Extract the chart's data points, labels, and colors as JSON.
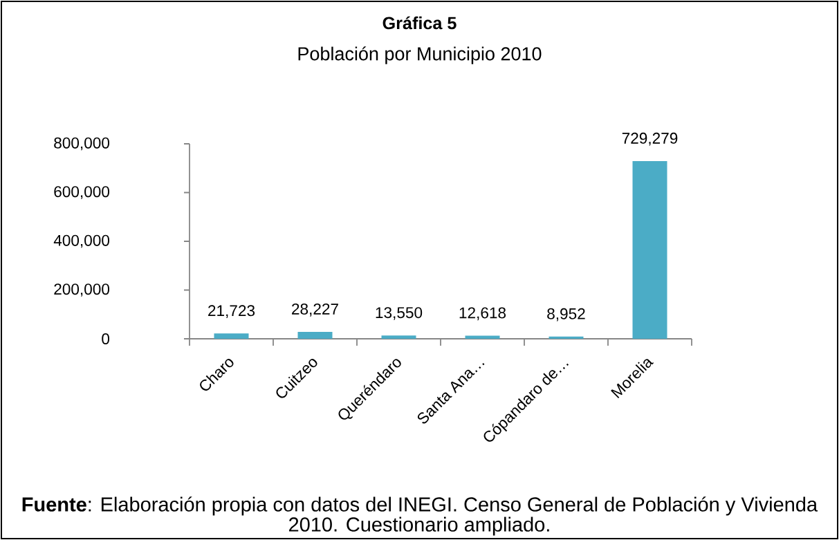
{
  "chart_data": {
    "type": "bar",
    "title": "Gráfica 5",
    "subtitle": "Población por Municipio 2010",
    "categories": [
      "Charo",
      "Cuitzeo",
      "Queréndaro",
      "Santa Ana…",
      "Cópandaro de…",
      "Morelia"
    ],
    "values": [
      21723,
      28227,
      13550,
      12618,
      8952,
      729279
    ],
    "color": "#4bacc6",
    "value_labels": [
      "21,723",
      "28,227",
      "13,550",
      "12,618",
      "8,952",
      "729,279"
    ],
    "ylim": [
      0,
      800000
    ],
    "yticks": [
      0,
      {
        "value": 200000,
        "label": "200,000"
      },
      {
        "value": 400000,
        "label": "400,000"
      },
      {
        "value": 600000,
        "label": "600,000"
      },
      {
        "value": 800000,
        "label": "800,000"
      }
    ],
    "annotations": [
      "**Fuente**: Elaboración propia con datos del INEGI. Censo General de Población y Vivienda 2010. Cuestionario ampliado."
    ]
  }
}
